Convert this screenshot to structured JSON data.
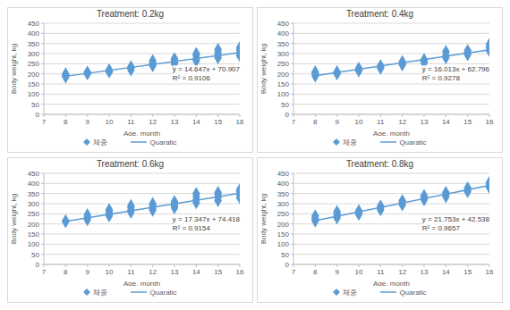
{
  "chart_data": [
    {
      "type": "scatter",
      "title": "Treatment: 0.2kg",
      "x_label": "Age, month",
      "y_label": "Body weight, kg",
      "xlim": [
        7,
        16
      ],
      "ylim": [
        0,
        450
      ],
      "xticks": [
        7,
        8,
        9,
        10,
        11,
        12,
        13,
        14,
        15,
        16
      ],
      "yticks": [
        0,
        50,
        100,
        150,
        200,
        250,
        300,
        350,
        400,
        450
      ],
      "grid": true,
      "annotations": [
        "y = 14.647x + 70.907",
        "R² = 0.9106"
      ],
      "series": [
        {
          "name": "체중",
          "type": "scatter",
          "color": "#5b9bd5",
          "marker": "diamond",
          "x": [
            8,
            8,
            8,
            8,
            9,
            9,
            9,
            10,
            10,
            10,
            11,
            11,
            11,
            12,
            12,
            12,
            12,
            13,
            13,
            13,
            13,
            14,
            14,
            14,
            14,
            15,
            15,
            15,
            15,
            16,
            16,
            16,
            16
          ],
          "values": [
            185,
            190,
            195,
            200,
            200,
            205,
            208,
            210,
            215,
            220,
            220,
            228,
            235,
            240,
            248,
            255,
            265,
            250,
            258,
            265,
            275,
            265,
            275,
            290,
            300,
            280,
            295,
            305,
            320,
            290,
            305,
            320,
            330
          ]
        },
        {
          "name": "Quaratic",
          "type": "line",
          "color": "#5b9bd5",
          "line_style": "solid",
          "x": [
            8,
            16
          ],
          "values": [
            188.08,
            305.26
          ]
        }
      ]
    },
    {
      "type": "scatter",
      "title": "Treatment: 0.4kg",
      "x_label": "Age, month",
      "y_label": "Body weight, kg",
      "xlim": [
        7,
        16
      ],
      "ylim": [
        0,
        450
      ],
      "xticks": [
        7,
        8,
        9,
        10,
        11,
        12,
        13,
        14,
        15,
        16
      ],
      "yticks": [
        0,
        50,
        100,
        150,
        200,
        250,
        300,
        350,
        400,
        450
      ],
      "grid": true,
      "annotations": [
        "y = 16.013x + 62.796",
        "R² = 0.9278"
      ],
      "series": [
        {
          "name": "체중",
          "type": "scatter",
          "color": "#5b9bd5",
          "marker": "diamond",
          "x": [
            8,
            8,
            8,
            8,
            9,
            9,
            9,
            10,
            10,
            10,
            11,
            11,
            11,
            12,
            12,
            12,
            13,
            13,
            13,
            14,
            14,
            14,
            15,
            15,
            15,
            16,
            16,
            16
          ],
          "values": [
            190,
            198,
            205,
            210,
            200,
            205,
            210,
            215,
            220,
            228,
            228,
            235,
            240,
            245,
            252,
            260,
            255,
            262,
            270,
            280,
            290,
            310,
            295,
            305,
            315,
            315,
            330,
            345
          ]
        },
        {
          "name": "Quaratic",
          "type": "line",
          "color": "#5b9bd5",
          "line_style": "solid",
          "x": [
            8,
            16
          ],
          "values": [
            190.9,
            319.0
          ]
        }
      ]
    },
    {
      "type": "scatter",
      "title": "Treatment: 0.6kg",
      "x_label": "Age, month",
      "y_label": "Body weight, kg",
      "xlim": [
        7,
        16
      ],
      "ylim": [
        0,
        450
      ],
      "xticks": [
        7,
        8,
        9,
        10,
        11,
        12,
        13,
        14,
        15,
        16
      ],
      "yticks": [
        0,
        50,
        100,
        150,
        200,
        250,
        300,
        350,
        400,
        450
      ],
      "grid": true,
      "annotations": [
        "y = 17.347x + 74.418",
        "R² = 0.9154"
      ],
      "series": [
        {
          "name": "체중",
          "type": "scatter",
          "color": "#5b9bd5",
          "marker": "diamond",
          "x": [
            8,
            8,
            9,
            9,
            9,
            10,
            10,
            10,
            10,
            11,
            11,
            11,
            11,
            12,
            12,
            12,
            12,
            13,
            13,
            13,
            13,
            14,
            14,
            14,
            14,
            15,
            15,
            15,
            15,
            16,
            16,
            16,
            16
          ],
          "values": [
            212,
            215,
            222,
            232,
            245,
            240,
            250,
            262,
            270,
            258,
            268,
            280,
            290,
            268,
            278,
            290,
            300,
            280,
            290,
            300,
            310,
            305,
            320,
            335,
            350,
            315,
            330,
            345,
            355,
            330,
            345,
            360,
            370
          ]
        },
        {
          "name": "Quaratic",
          "type": "line",
          "color": "#5b9bd5",
          "line_style": "solid",
          "x": [
            8,
            16
          ],
          "values": [
            213.2,
            352.0
          ]
        }
      ]
    },
    {
      "type": "scatter",
      "title": "Treatment: 0.8kg",
      "x_label": "Age, month",
      "y_label": "Body weight, kg",
      "xlim": [
        7,
        16
      ],
      "ylim": [
        0,
        450
      ],
      "xticks": [
        7,
        8,
        9,
        10,
        11,
        12,
        13,
        14,
        15,
        16
      ],
      "yticks": [
        0,
        50,
        100,
        150,
        200,
        250,
        300,
        350,
        400,
        450
      ],
      "grid": true,
      "annotations": [
        "y = 21.753x + 42.538",
        "R² = 0.9657"
      ],
      "series": [
        {
          "name": "체중",
          "type": "scatter",
          "color": "#5b9bd5",
          "marker": "diamond",
          "x": [
            8,
            8,
            8,
            8,
            9,
            9,
            9,
            9,
            10,
            10,
            10,
            11,
            11,
            11,
            12,
            12,
            12,
            13,
            13,
            13,
            14,
            14,
            14,
            15,
            15,
            15,
            16,
            16,
            16
          ],
          "values": [
            215,
            222,
            230,
            240,
            230,
            240,
            250,
            260,
            248,
            255,
            265,
            270,
            280,
            288,
            295,
            305,
            315,
            320,
            330,
            340,
            335,
            345,
            355,
            360,
            370,
            378,
            380,
            395,
            405
          ]
        },
        {
          "name": "Quaratic",
          "type": "line",
          "color": "#5b9bd5",
          "line_style": "solid",
          "x": [
            8,
            16
          ],
          "values": [
            216.6,
            390.6
          ]
        }
      ]
    }
  ]
}
